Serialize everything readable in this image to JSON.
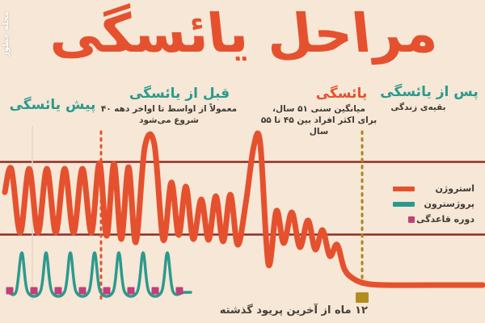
{
  "page": {
    "background": "#f6e7d6"
  },
  "watermark": {
    "text": "مجله چطور"
  },
  "title": {
    "text": "مراحل یائسگی",
    "color": "#e5512e"
  },
  "stages": [
    {
      "label": "پیش یائسگی",
      "color": "#2b9a8e",
      "desc": ""
    },
    {
      "label": "قبل از یائسگی",
      "color": "#2b9a8e",
      "desc": "معمولاً از اواسط تا اواخر دهه ۴۰\nشروع می‌شود"
    },
    {
      "label": "یائسگی",
      "color": "#e5512e",
      "desc": "میانگین سنی ۵۱ سال،\nبرای اکثر افراد بین ۴۵ تا ۵۵ سال"
    },
    {
      "label": "پس از یائسگی",
      "color": "#2b9a8e",
      "desc": "بقیه‌ی زندگی"
    }
  ],
  "legend": [
    {
      "label": "استروژن",
      "color": "#e5512e",
      "shape": "bar"
    },
    {
      "label": "پروژسترون",
      "color": "#2b9a8e",
      "shape": "bar"
    },
    {
      "label": "دوره قاعدگی",
      "color": "#c13f7a",
      "shape": "square"
    }
  ],
  "footnote": {
    "text": "۱۲ ماه از آخرین پریود گذشته"
  },
  "chart_data": {
    "type": "line",
    "title": "مراحل یائسگی",
    "legend_position": "right",
    "grid": "two horizontal reference lines, no axis ticks or numeric labels",
    "gridlines_y": [
      200.5,
      290.5
    ],
    "gridline_color": "#8f2d24",
    "faint_divider": {
      "x": 40,
      "y1": 156,
      "y2": 372,
      "color": "#e9d6c2"
    },
    "dividers": [
      {
        "x": 125,
        "y1": 163,
        "y2": 374,
        "color": "#e5512e",
        "style": "dotted",
        "cap": false
      },
      {
        "x": 448,
        "y1": 163,
        "y2": 356,
        "color": "#a8861c",
        "style": "dotted",
        "cap": true,
        "cap_rect": {
          "x": 440,
          "y": 362,
          "w": 16,
          "h": 13,
          "color": "#b28d1e"
        }
      }
    ],
    "series": [
      {
        "name": "استروژن",
        "color": "#e5512e",
        "stroke_width": 7,
        "points": [
          [
            6,
            238
          ],
          [
            14,
            209
          ],
          [
            25,
            288
          ],
          [
            36,
            209
          ],
          [
            47,
            288
          ],
          [
            58,
            209
          ],
          [
            69,
            288
          ],
          [
            80,
            209
          ],
          [
            91,
            288
          ],
          [
            102,
            209
          ],
          [
            113,
            288
          ],
          [
            123,
            202
          ],
          [
            132,
            292
          ],
          [
            141,
            203
          ],
          [
            150,
            296
          ],
          [
            159,
            207
          ],
          [
            168,
            300
          ],
          [
            179,
            183
          ],
          [
            191,
            179
          ],
          [
            202,
            297
          ],
          [
            212,
            226
          ],
          [
            221,
            291
          ],
          [
            230,
            231
          ],
          [
            239,
            296
          ],
          [
            249,
            247
          ],
          [
            258,
            297
          ],
          [
            267,
            243
          ],
          [
            276,
            299
          ],
          [
            285,
            241
          ],
          [
            294,
            303
          ],
          [
            304,
            252
          ],
          [
            314,
            181
          ],
          [
            322,
            178
          ],
          [
            332,
            327
          ],
          [
            342,
            261
          ],
          [
            351,
            301
          ],
          [
            361,
            263
          ],
          [
            371,
            306
          ],
          [
            381,
            273
          ],
          [
            390,
            309
          ],
          [
            399,
            285
          ],
          [
            408,
            317
          ],
          [
            417,
            303
          ],
          [
            426,
            333
          ],
          [
            437,
            345
          ],
          [
            452,
            351
          ],
          [
            478,
            353
          ],
          [
            560,
            353
          ],
          [
            597,
            353
          ]
        ]
      },
      {
        "name": "پروژسترون",
        "color": "#2b9a8e",
        "stroke_width": 3.5,
        "points": [
          [
            10,
            362
          ],
          [
            20,
            361
          ],
          [
            27,
            313
          ],
          [
            34,
            361
          ],
          [
            50,
            361
          ],
          [
            57,
            313
          ],
          [
            64,
            361
          ],
          [
            80,
            361
          ],
          [
            87,
            313
          ],
          [
            94,
            361
          ],
          [
            110,
            361
          ],
          [
            117,
            313
          ],
          [
            124,
            361
          ],
          [
            140,
            361
          ],
          [
            147,
            313
          ],
          [
            154,
            361
          ],
          [
            170,
            361
          ],
          [
            177,
            313
          ],
          [
            184,
            361
          ],
          [
            200,
            361
          ],
          [
            207,
            313
          ],
          [
            214,
            361
          ],
          [
            228,
            362
          ],
          [
            236,
            362
          ]
        ]
      }
    ],
    "period_markers": {
      "name": "دوره قاعدگی",
      "color": "#c13f7a",
      "size": 9,
      "y_center": 360,
      "x": [
        12,
        42,
        72,
        102,
        132,
        162,
        192,
        222
      ]
    }
  }
}
